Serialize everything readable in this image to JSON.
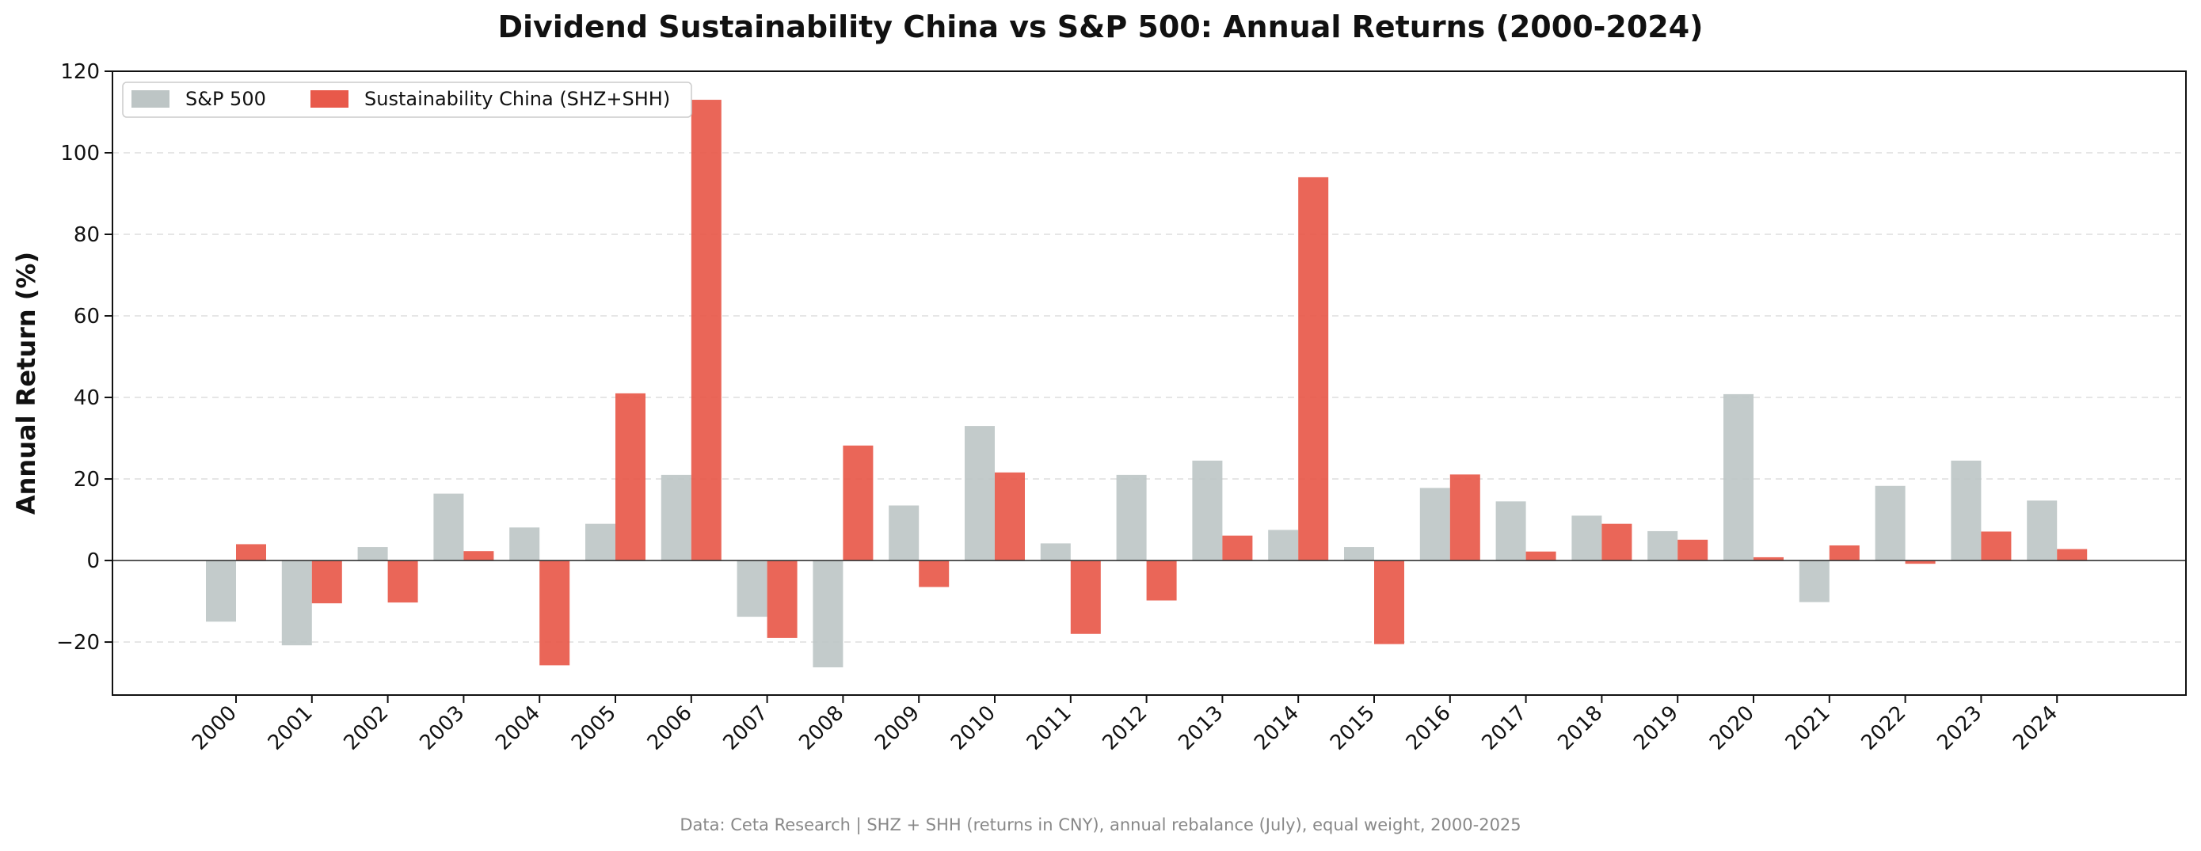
{
  "chart_data": {
    "type": "bar",
    "title": "Dividend Sustainability China vs S&P 500: Annual Returns (2000-2024)",
    "xlabel": "",
    "ylabel": "Annual Return (%)",
    "ylim": [
      -33,
      120
    ],
    "yticks": [
      -20,
      0,
      20,
      40,
      60,
      80,
      100,
      120
    ],
    "ytick_labels": [
      "−20",
      "0",
      "20",
      "40",
      "60",
      "80",
      "100",
      "120"
    ],
    "grid": "horizontal dashed",
    "legend_position": "top-left",
    "categories": [
      "2000",
      "2001",
      "2002",
      "2003",
      "2004",
      "2005",
      "2006",
      "2007",
      "2008",
      "2009",
      "2010",
      "2011",
      "2012",
      "2013",
      "2014",
      "2015",
      "2016",
      "2017",
      "2018",
      "2019",
      "2020",
      "2021",
      "2022",
      "2023",
      "2024"
    ],
    "series": [
      {
        "name": "S&P 500",
        "color": "#bdc5c5",
        "values": [
          -15.0,
          -20.8,
          3.3,
          16.4,
          8.1,
          9.0,
          21.0,
          -13.8,
          -26.2,
          13.5,
          33.0,
          4.2,
          21.0,
          24.5,
          7.5,
          3.3,
          17.8,
          14.5,
          11.0,
          7.2,
          40.8,
          -10.2,
          18.3,
          24.5,
          14.7
        ]
      },
      {
        "name": "Sustainability China (SHZ+SHH)",
        "color": "#e8594a",
        "values": [
          4.0,
          -10.5,
          -10.3,
          2.3,
          -25.7,
          41.0,
          113.0,
          -19.0,
          28.2,
          -6.5,
          21.6,
          -18.0,
          -9.8,
          6.1,
          94.0,
          -20.5,
          21.1,
          2.2,
          9.0,
          5.1,
          0.8,
          3.7,
          -0.8,
          7.1,
          2.8
        ]
      }
    ],
    "source_note": "Data: Ceta Research | SHZ + SHH (returns in CNY), annual rebalance (July), equal weight, 2000-2025"
  }
}
